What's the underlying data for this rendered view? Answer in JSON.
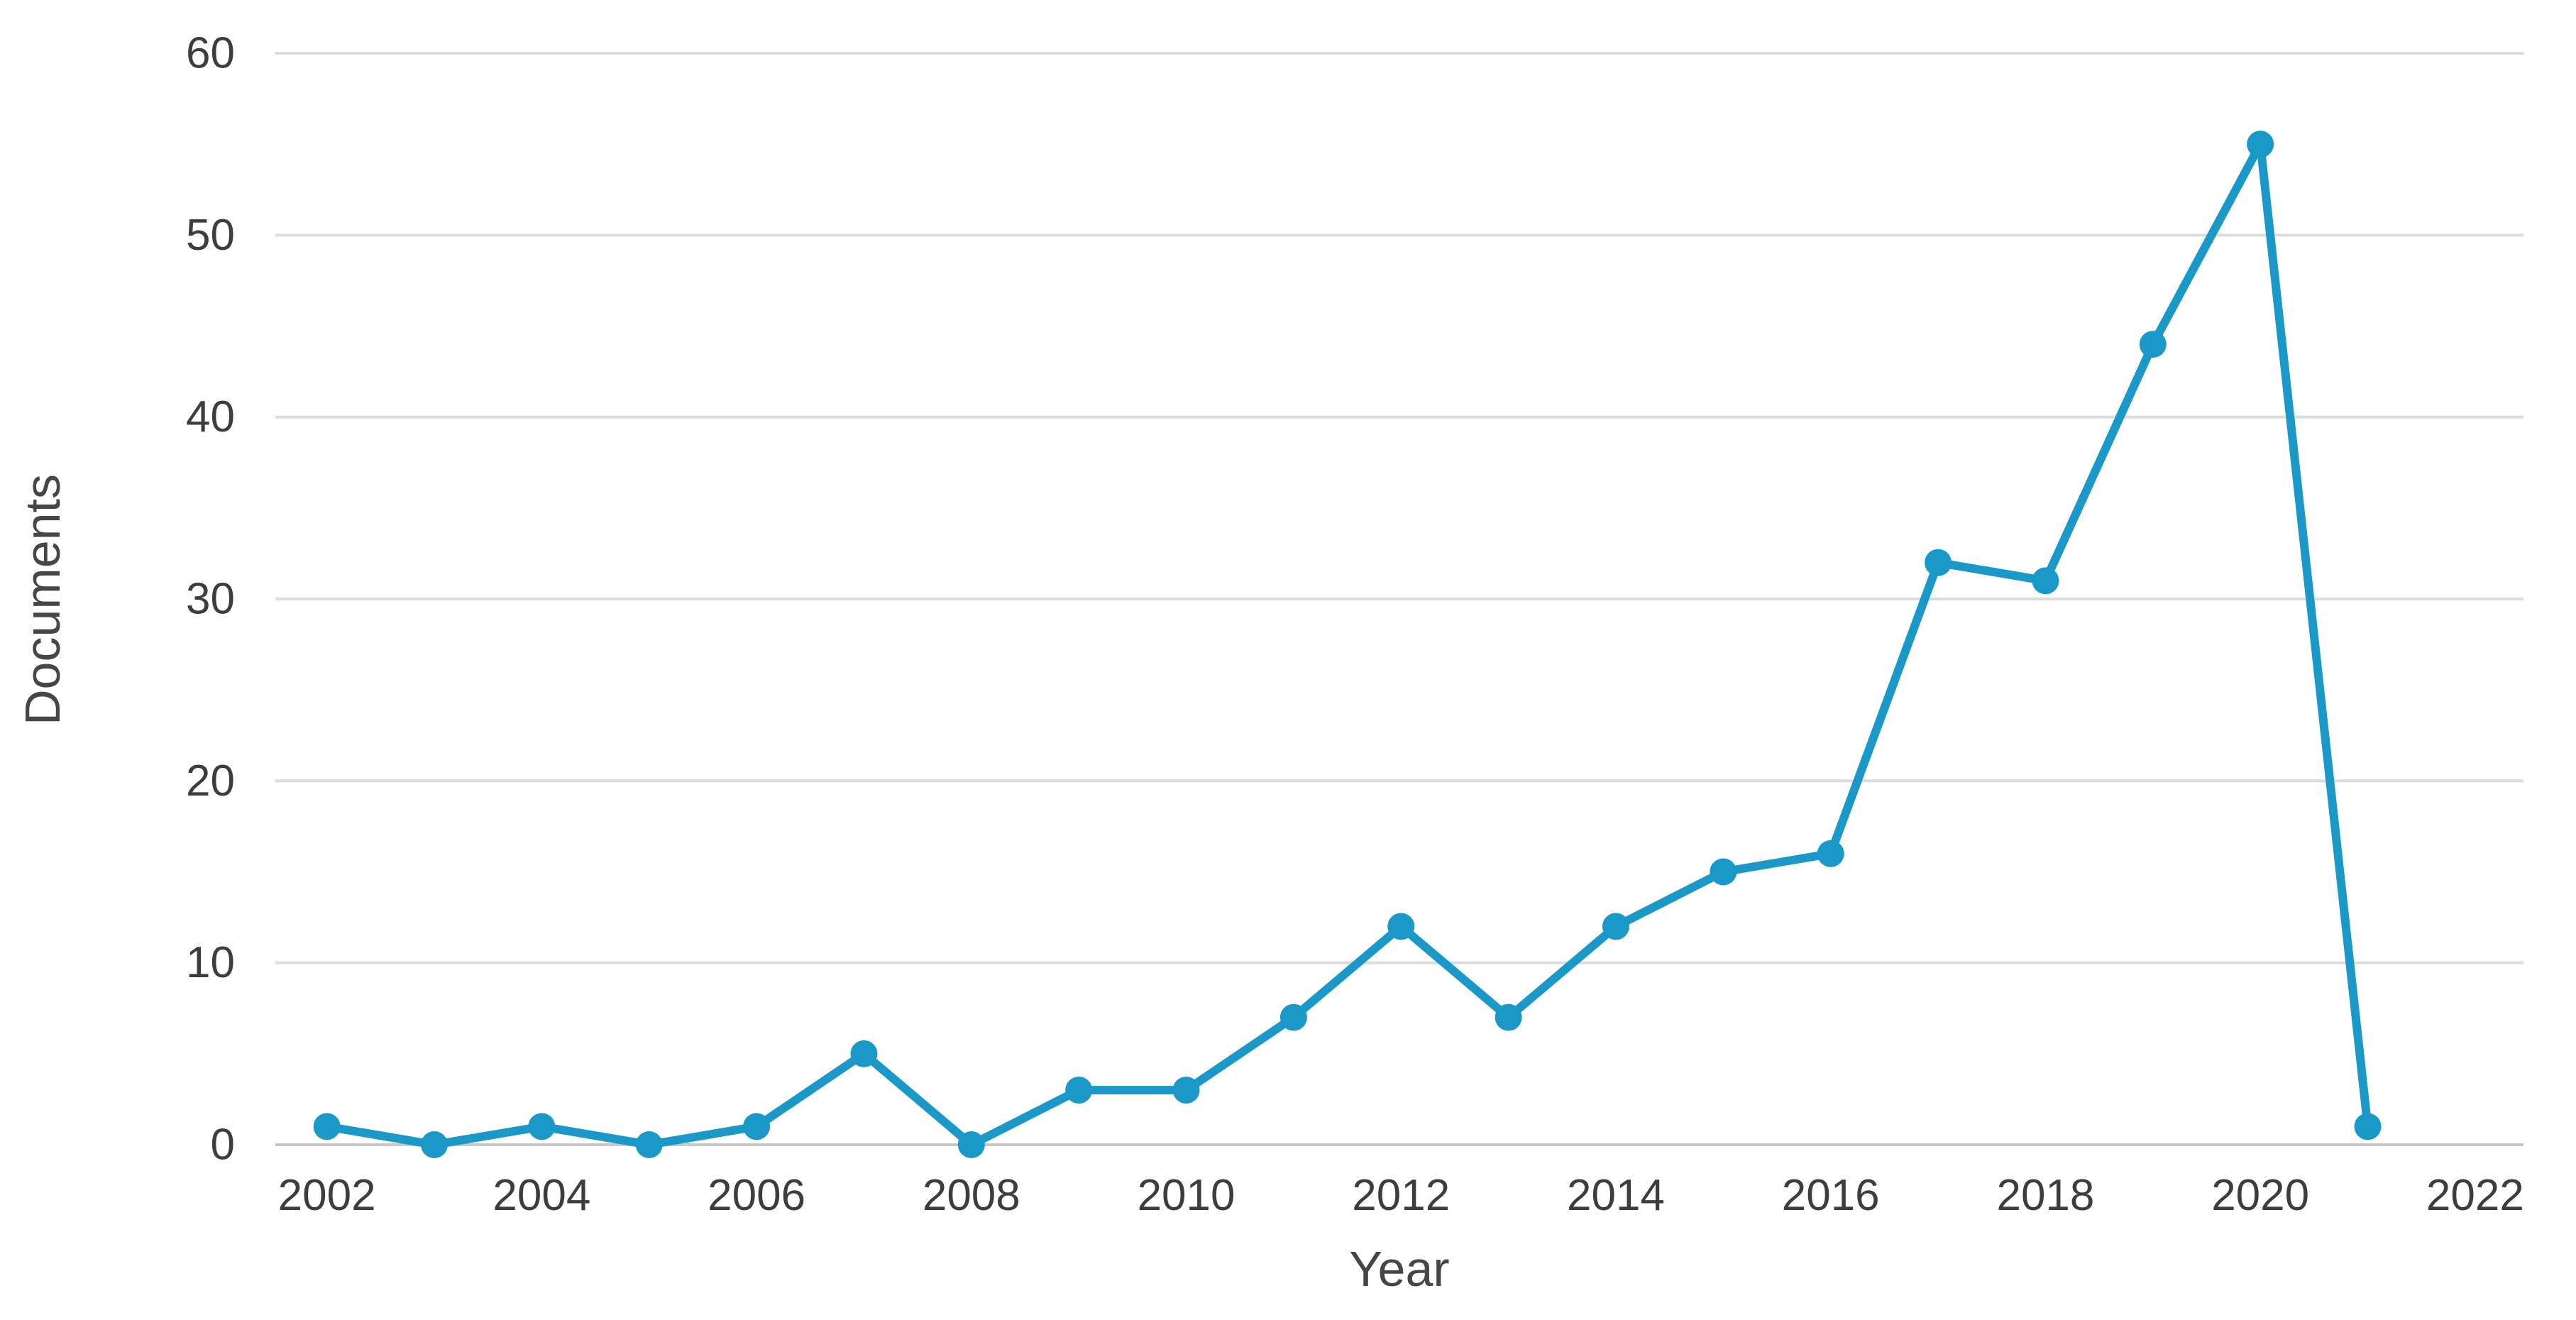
{
  "chart_data": {
    "type": "line",
    "title": "",
    "xlabel": "Year",
    "ylabel": "Documents",
    "series_name": "Documents",
    "x": [
      2002,
      2003,
      2004,
      2005,
      2006,
      2007,
      2008,
      2009,
      2010,
      2011,
      2012,
      2013,
      2014,
      2015,
      2016,
      2017,
      2018,
      2019,
      2020,
      2021
    ],
    "values": [
      1,
      0,
      1,
      0,
      1,
      5,
      0,
      3,
      3,
      7,
      12,
      7,
      12,
      15,
      16,
      32,
      31,
      44,
      55,
      1
    ],
    "xticks": [
      2002,
      2004,
      2006,
      2008,
      2010,
      2012,
      2014,
      2016,
      2018,
      2020,
      2022
    ],
    "yticks": [
      0,
      10,
      20,
      30,
      40,
      50,
      60
    ],
    "xlim": [
      2001.52,
      2022.45
    ],
    "ylim": [
      0,
      60
    ],
    "grid": "horizontal",
    "legend": "none",
    "colors": {
      "line": "#1a99c8",
      "marker": "#1a99c8",
      "gridline": "#dcdcdc",
      "axis_line": "#c8c8c8",
      "tick_text": "#3d3d3d",
      "axis_title_text": "#464646"
    }
  }
}
